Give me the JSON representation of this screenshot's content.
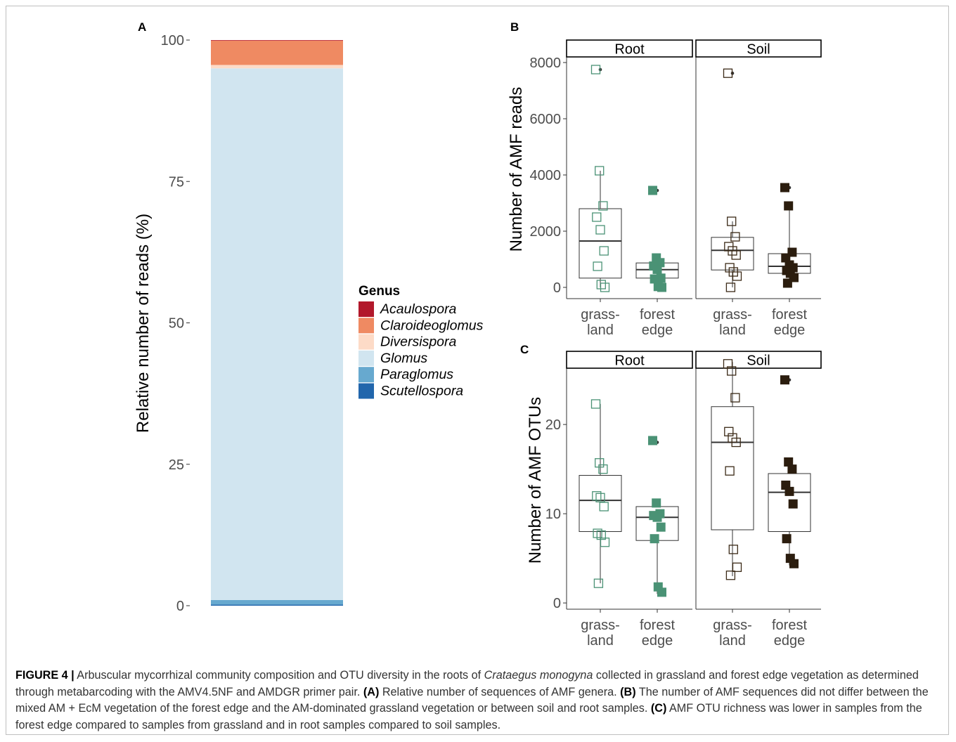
{
  "panels": {
    "a": {
      "letter": "A"
    },
    "b": {
      "letter": "B"
    },
    "c": {
      "letter": "C"
    }
  },
  "colors": {
    "Acaulospora": "#b2182b",
    "Claroideoglomus": "#ef8a62",
    "Diversispora": "#fddbc7",
    "Glomus": "#d1e5f0",
    "Paraglomus": "#67a9cf",
    "Scutellospora": "#2166ac",
    "grassland_root": "#4a9275",
    "forest_root": "#4a9275",
    "grassland_soil": "#3b2a17",
    "forest_soil": "#2b1d0e"
  },
  "legend": {
    "title": "Genus",
    "items": [
      "Acaulospora",
      "Claroideoglomus",
      "Diversispora",
      "Glomus",
      "Paraglomus",
      "Scutellospora"
    ]
  },
  "chart_data": [
    {
      "id": "A",
      "type": "bar",
      "stacked": true,
      "ylabel": "Relative number of reads (%)",
      "ylim": [
        0,
        100
      ],
      "yticks": [
        "0",
        "25",
        "50",
        "75",
        "100"
      ],
      "series": [
        {
          "name": "Scutellospora",
          "value": 0.2
        },
        {
          "name": "Paraglomus",
          "value": 0.8
        },
        {
          "name": "Glomus",
          "value": 94.0
        },
        {
          "name": "Diversispora",
          "value": 0.6
        },
        {
          "name": "Claroideoglomus",
          "value": 4.3
        },
        {
          "name": "Acaulospora",
          "value": 0.1
        }
      ]
    },
    {
      "id": "B",
      "type": "box",
      "ylabel": "Number of AMF reads",
      "ylim": [
        -400,
        8800
      ],
      "yticks": [
        0,
        2000,
        4000,
        6000,
        8000
      ],
      "ytick_labels": [
        "0",
        "2000",
        "4000",
        "6000",
        "8000"
      ],
      "facets": [
        {
          "label": "Root",
          "groups": [
            {
              "label_lines": [
                "grass-",
                "land"
              ],
              "filled": false,
              "color_key": "grassland_root",
              "box": {
                "q1": 330,
                "median": 1650,
                "q3": 2800,
                "whisker_low": 0,
                "whisker_high": 4150,
                "outliers": [
                  7750
                ]
              },
              "points": [
                7750,
                4150,
                2900,
                2500,
                2050,
                1300,
                750,
                100,
                0
              ]
            },
            {
              "label_lines": [
                "forest",
                "edge"
              ],
              "filled": true,
              "color_key": "forest_root",
              "box": {
                "q1": 330,
                "median": 630,
                "q3": 870,
                "whisker_low": 0,
                "whisker_high": 1050,
                "outliers": [
                  3450
                ]
              },
              "points": [
                3450,
                1050,
                880,
                760,
                640,
                330,
                300,
                30,
                0
              ]
            }
          ]
        },
        {
          "label": "Soil",
          "groups": [
            {
              "label_lines": [
                "grass-",
                "land"
              ],
              "filled": false,
              "color_key": "grassland_soil",
              "box": {
                "q1": 620,
                "median": 1320,
                "q3": 1780,
                "whisker_low": 0,
                "whisker_high": 2350,
                "outliers": [
                  7620
                ]
              },
              "points": [
                7620,
                2350,
                1800,
                1450,
                1300,
                1150,
                700,
                550,
                400,
                0
              ]
            },
            {
              "label_lines": [
                "forest",
                "edge"
              ],
              "filled": true,
              "color_key": "forest_soil",
              "box": {
                "q1": 500,
                "median": 750,
                "q3": 1200,
                "whisker_low": 150,
                "whisker_high": 2900,
                "outliers": [
                  3550
                ]
              },
              "points": [
                3550,
                2900,
                1250,
                1050,
                800,
                700,
                600,
                500,
                350,
                150
              ]
            }
          ]
        }
      ]
    },
    {
      "id": "C",
      "type": "box",
      "ylabel": "Number of AMF OTUs",
      "ylim": [
        -0.7,
        28.2
      ],
      "yticks": [
        0,
        10,
        20
      ],
      "ytick_labels": [
        "0",
        "10",
        "20"
      ],
      "facets": [
        {
          "label": "Root",
          "groups": [
            {
              "label_lines": [
                "grass-",
                "land"
              ],
              "filled": false,
              "color_key": "grassland_root",
              "box": {
                "q1": 8,
                "median": 11.5,
                "q3": 14.3,
                "whisker_low": 2.2,
                "whisker_high": 22.3,
                "outliers": []
              },
              "points": [
                22.3,
                15.7,
                15,
                12,
                11.8,
                10.8,
                7.8,
                7.6,
                6.8,
                2.2
              ]
            },
            {
              "label_lines": [
                "forest",
                "edge"
              ],
              "filled": true,
              "color_key": "forest_root",
              "box": {
                "q1": 7,
                "median": 9.6,
                "q3": 10.8,
                "whisker_low": 1,
                "whisker_high": 11.3,
                "outliers": [
                  18
                ]
              },
              "points": [
                18.2,
                11.2,
                10,
                9.8,
                9.6,
                8.5,
                7.2,
                1.8,
                1.2
              ]
            }
          ]
        },
        {
          "label": "Soil",
          "groups": [
            {
              "label_lines": [
                "grass-",
                "land"
              ],
              "filled": false,
              "color_key": "grassland_soil",
              "box": {
                "q1": 8.2,
                "median": 18,
                "q3": 22,
                "whisker_low": 3,
                "whisker_high": 27,
                "outliers": []
              },
              "points": [
                26.8,
                26,
                23,
                19.2,
                18.5,
                18,
                14.8,
                6,
                4,
                3.1
              ]
            },
            {
              "label_lines": [
                "forest",
                "edge"
              ],
              "filled": true,
              "color_key": "forest_soil",
              "box": {
                "q1": 8,
                "median": 12.4,
                "q3": 14.5,
                "whisker_low": 4.2,
                "whisker_high": 15.8,
                "outliers": [
                  25
                ]
              },
              "points": [
                25,
                15.8,
                15,
                13.2,
                12.5,
                11.1,
                7.2,
                5,
                4.4
              ]
            }
          ]
        }
      ]
    }
  ],
  "caption": {
    "figure_label": "FIGURE 4 |",
    "part1": " Arbuscular mycorrhizal community composition and OTU diversity in the roots of ",
    "species": "Crataegus monogyna",
    "part2": " collected in grassland and forest edge vegetation as determined through metabarcoding with the AMV4.5NF and AMDGR primer pair. ",
    "a_tag": "(A)",
    "a_text": " Relative number of sequences of AMF genera. ",
    "b_tag": "(B)",
    "b_text": " The number of AMF sequences did not differ between the mixed AM + EcM vegetation of the forest edge and the AM-dominated grassland vegetation or between soil and root samples. ",
    "c_tag": "(C)",
    "c_text": " AMF OTU richness was lower in samples from the forest edge compared to samples from grassland and in root samples compared to soil samples."
  }
}
